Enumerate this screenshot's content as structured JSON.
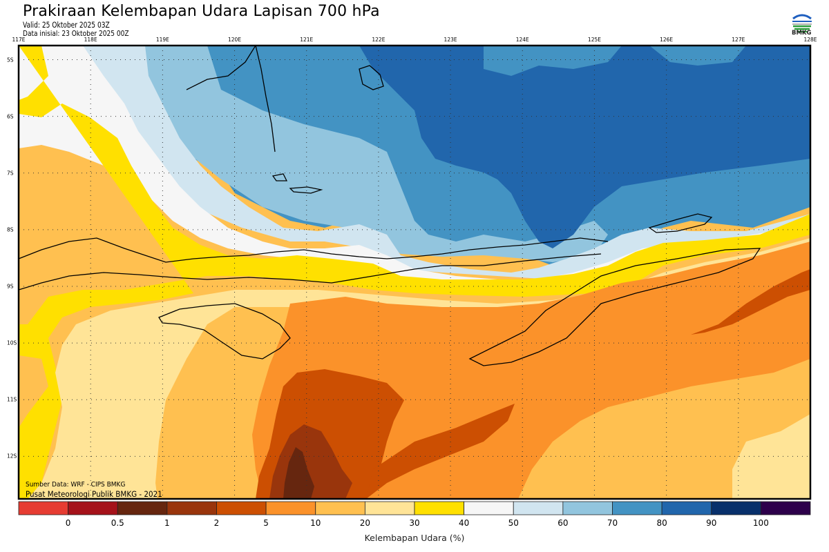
{
  "header": {
    "title": "Prakiraan Kelembapan Udara Lapisan 700 hPa",
    "valid": "Valid: 25 Oktober 2025 03Z",
    "initial": "Data inisial: 23 Oktober 2025 00Z",
    "logo_text": "BMKG"
  },
  "credits": {
    "source": "Sumber Data: WRF - CIPS BMKG",
    "publisher": "Pusat Meteorologi Publik BMKG - 2021"
  },
  "chart_data": {
    "type": "heatmap",
    "title": "Prakiraan Kelembapan Udara Lapisan 700 hPa",
    "variable": "Kelembapan Udara (%)",
    "level": "700 hPa",
    "lon_range": [
      117,
      128
    ],
    "lat_range": [
      -12.75,
      -4.75
    ],
    "grid": true,
    "lon_ticks": [
      "117E",
      "118E",
      "119E",
      "120E",
      "121E",
      "122E",
      "123E",
      "124E",
      "125E",
      "126E",
      "127E",
      "128E"
    ],
    "lat_ticks": [
      "5S",
      "6S",
      "7S",
      "8S",
      "9S",
      "10S",
      "11S",
      "12S"
    ],
    "colorbar": {
      "title": "Kelembapan Udara (%)",
      "tick_labels": [
        "0",
        "0.5",
        "1",
        "2",
        "5",
        "10",
        "20",
        "30",
        "40",
        "50",
        "60",
        "70",
        "80",
        "90",
        "100"
      ],
      "bins": [
        {
          "range": "<0",
          "color": "#e63c32"
        },
        {
          "range": "0-0.5",
          "color": "#a5121a"
        },
        {
          "range": "0.5-1",
          "color": "#66260f"
        },
        {
          "range": "1-2",
          "color": "#99350c"
        },
        {
          "range": "2-5",
          "color": "#cc4f02"
        },
        {
          "range": "5-10",
          "color": "#fb922a"
        },
        {
          "range": "10-20",
          "color": "#ffc050"
        },
        {
          "range": "20-30",
          "color": "#ffe497"
        },
        {
          "range": "30-40",
          "color": "#ffe000"
        },
        {
          "range": "40-50",
          "color": "#f6f6f6"
        },
        {
          "range": "50-60",
          "color": "#d1e5f0"
        },
        {
          "range": "60-70",
          "color": "#92c5de"
        },
        {
          "range": "70-80",
          "color": "#4393c3"
        },
        {
          "range": "80-90",
          "color": "#2166ac"
        },
        {
          "range": "90-100",
          "color": "#08306b"
        },
        {
          "range": ">100",
          "color": "#2d004b"
        }
      ]
    },
    "regions": [
      {
        "name": "north-east sea",
        "humidity_range": "80-90"
      },
      {
        "name": "north-central sea",
        "humidity_range": "70-80"
      },
      {
        "name": "west sea",
        "humidity_range": "30-50"
      },
      {
        "name": "south-central sea",
        "humidity_range": "2-10"
      },
      {
        "name": "south dry core",
        "humidity_range": "0.5-2"
      }
    ]
  }
}
